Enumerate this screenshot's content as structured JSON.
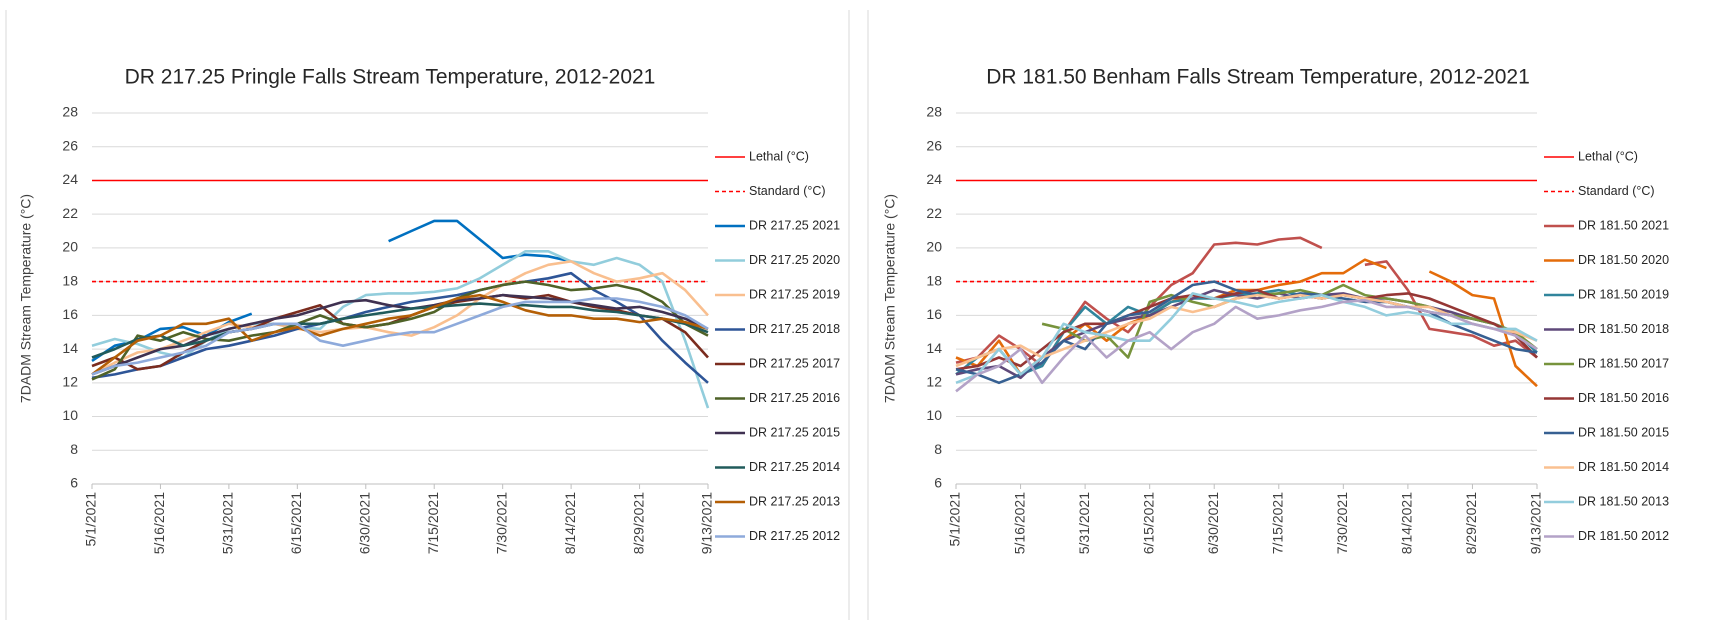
{
  "chart_data": [
    {
      "type": "line",
      "title": "DR 217.25 Pringle Falls Stream Temperature, 2012-2021",
      "y_label": "7DADM Stream Temperature (°C)",
      "categories": [
        "5/1/2021",
        null,
        null,
        "5/16/2021",
        null,
        null,
        "5/31/2021",
        null,
        null,
        "6/15/2021",
        null,
        null,
        "6/30/2021",
        null,
        null,
        "7/15/2021",
        null,
        null,
        "7/30/2021",
        null,
        null,
        "8/14/2021",
        null,
        null,
        "8/29/2021",
        null,
        null,
        "9/13/2021"
      ],
      "ylim": [
        6,
        28
      ],
      "yticks": [
        6,
        8,
        10,
        12,
        14,
        16,
        18,
        20,
        22,
        24,
        26,
        28
      ],
      "grid": true,
      "series": [
        {
          "name": "Lethal (°C)",
          "color": "#ff0000",
          "dash": false,
          "values": [
            24,
            24,
            24,
            24,
            24,
            24,
            24,
            24,
            24,
            24,
            24,
            24,
            24,
            24,
            24,
            24,
            24,
            24,
            24,
            24,
            24,
            24,
            24,
            24,
            24,
            24,
            24,
            24
          ]
        },
        {
          "name": "Standard (°C)",
          "color": "#ff0000",
          "dash": true,
          "values": [
            18,
            18,
            18,
            18,
            18,
            18,
            18,
            18,
            18,
            18,
            18,
            18,
            18,
            18,
            18,
            18,
            18,
            18,
            18,
            18,
            18,
            18,
            18,
            18,
            18,
            18,
            18,
            18
          ]
        },
        {
          "name": "DR 217.25 2021",
          "color": "#0070c0",
          "values": [
            13.3,
            14.2,
            14.5,
            15.2,
            15.3,
            14.8,
            15.6,
            16.1,
            null,
            null,
            null,
            null,
            null,
            20.4,
            21.0,
            21.6,
            21.6,
            20.5,
            19.4,
            19.6,
            19.5,
            19.2,
            null,
            null,
            null,
            null,
            null,
            null
          ]
        },
        {
          "name": "DR 217.25 2020",
          "color": "#92cddc",
          "values": [
            14.2,
            14.6,
            14.3,
            13.8,
            13.5,
            14.5,
            15.2,
            15.5,
            15.5,
            15.3,
            15.2,
            16.5,
            17.2,
            17.3,
            17.3,
            17.4,
            17.6,
            18.2,
            19.0,
            19.8,
            19.8,
            19.2,
            19.0,
            19.4,
            19.0,
            18.0,
            14.5,
            10.5
          ]
        },
        {
          "name": "DR 217.25 2019",
          "color": "#f9bf8f",
          "values": [
            12.5,
            13.2,
            13.8,
            14.0,
            14.5,
            15.0,
            15.5,
            15.3,
            15.5,
            15.2,
            15.0,
            15.2,
            15.3,
            15.0,
            14.8,
            15.3,
            16.0,
            17.0,
            17.8,
            18.5,
            19.0,
            19.2,
            18.5,
            18.0,
            18.2,
            18.5,
            17.5,
            16.0
          ]
        },
        {
          "name": "DR 217.25 2018",
          "color": "#2e5597",
          "values": [
            12.3,
            12.5,
            12.8,
            13.0,
            13.5,
            14.0,
            14.2,
            14.5,
            14.8,
            15.2,
            15.5,
            15.8,
            16.2,
            16.5,
            16.8,
            17.0,
            17.2,
            17.5,
            17.8,
            18.0,
            18.2,
            18.5,
            17.5,
            16.8,
            16.0,
            14.5,
            13.2,
            12.0
          ]
        },
        {
          "name": "DR 217.25 2017",
          "color": "#7b2c1e",
          "values": [
            13.0,
            13.5,
            12.8,
            13.0,
            13.8,
            14.5,
            15.0,
            15.2,
            15.8,
            16.2,
            16.6,
            15.5,
            15.3,
            15.5,
            16.0,
            16.5,
            16.8,
            17.0,
            17.2,
            17.0,
            17.2,
            16.8,
            16.5,
            16.3,
            16.0,
            15.8,
            15.0,
            13.5
          ]
        },
        {
          "name": "DR 217.25 2016",
          "color": "#4f6228",
          "values": [
            12.2,
            12.8,
            14.8,
            14.5,
            15.0,
            14.6,
            14.5,
            14.8,
            15.0,
            15.5,
            16.0,
            15.5,
            15.3,
            15.5,
            15.8,
            16.2,
            17.0,
            17.5,
            17.8,
            18.0,
            17.8,
            17.5,
            17.6,
            17.8,
            17.5,
            16.8,
            15.5,
            14.8
          ]
        },
        {
          "name": "DR 217.25 2015",
          "color": "#3f3151",
          "values": [
            12.5,
            13.0,
            13.5,
            14.0,
            14.2,
            14.8,
            15.2,
            15.5,
            15.8,
            16.0,
            16.4,
            16.8,
            16.9,
            16.6,
            16.4,
            16.6,
            16.9,
            17.0,
            17.2,
            17.1,
            17.0,
            16.8,
            16.6,
            16.4,
            16.5,
            16.2,
            15.8,
            15.2
          ]
        },
        {
          "name": "DR 217.25 2014",
          "color": "#215b5b",
          "values": [
            13.5,
            14.0,
            14.6,
            14.8,
            14.2,
            14.5,
            15.0,
            15.2,
            15.5,
            15.5,
            15.5,
            15.8,
            16.0,
            16.2,
            16.4,
            16.5,
            16.6,
            16.7,
            16.6,
            16.6,
            16.5,
            16.5,
            16.3,
            16.2,
            16.0,
            15.8,
            15.5,
            15.0
          ]
        },
        {
          "name": "DR 217.25 2013",
          "color": "#b45f06",
          "values": [
            12.5,
            13.5,
            14.5,
            14.8,
            15.5,
            15.5,
            15.8,
            14.5,
            15.0,
            15.3,
            14.8,
            15.2,
            15.5,
            15.8,
            16.0,
            16.5,
            17.0,
            17.2,
            16.8,
            16.3,
            16.0,
            16.0,
            15.8,
            15.8,
            15.6,
            15.8,
            15.6,
            15.2
          ]
        },
        {
          "name": "DR 217.25 2012",
          "color": "#8eaadb",
          "values": [
            12.5,
            13.0,
            13.2,
            13.5,
            13.8,
            14.2,
            15.0,
            15.2,
            15.5,
            15.5,
            14.5,
            14.2,
            14.5,
            14.8,
            15.0,
            15.0,
            15.5,
            16.0,
            16.5,
            16.8,
            16.8,
            16.8,
            17.0,
            17.0,
            16.8,
            16.5,
            16.0,
            15.2
          ]
        }
      ]
    },
    {
      "type": "line",
      "title": "DR 181.50 Benham Falls Stream Temperature, 2012-2021",
      "y_label": "7DADM Stream Temperature (°C)",
      "categories": [
        "5/1/2021",
        null,
        null,
        "5/16/2021",
        null,
        null,
        "5/31/2021",
        null,
        null,
        "6/15/2021",
        null,
        null,
        "6/30/2021",
        null,
        null,
        "7/15/2021",
        null,
        null,
        "7/30/2021",
        null,
        null,
        "8/14/2021",
        null,
        null,
        "8/29/2021",
        null,
        null,
        "9/13/2021"
      ],
      "ylim": [
        6,
        28
      ],
      "yticks": [
        6,
        8,
        10,
        12,
        14,
        16,
        18,
        20,
        22,
        24,
        26,
        28
      ],
      "grid": true,
      "series": [
        {
          "name": "Lethal (°C)",
          "color": "#ff0000",
          "dash": false,
          "values": [
            24,
            24,
            24,
            24,
            24,
            24,
            24,
            24,
            24,
            24,
            24,
            24,
            24,
            24,
            24,
            24,
            24,
            24,
            24,
            24,
            24,
            24,
            24,
            24,
            24,
            24,
            24,
            24
          ]
        },
        {
          "name": "Standard (°C)",
          "color": "#ff0000",
          "dash": true,
          "values": [
            18,
            18,
            18,
            18,
            18,
            18,
            18,
            18,
            18,
            18,
            18,
            18,
            18,
            18,
            18,
            18,
            18,
            18,
            18,
            18,
            18,
            18,
            18,
            18,
            18,
            18,
            18,
            18
          ]
        },
        {
          "name": "DR 181.50 2021",
          "color": "#c0504d",
          "values": [
            13.2,
            13.5,
            14.8,
            14.0,
            13.0,
            15.0,
            16.8,
            15.8,
            15.0,
            16.5,
            17.8,
            18.5,
            20.2,
            20.3,
            20.2,
            20.5,
            20.6,
            20.0,
            null,
            19.0,
            19.2,
            17.5,
            15.2,
            15.0,
            14.8,
            14.2,
            14.5,
            13.5
          ]
        },
        {
          "name": "DR 181.50 2020",
          "color": "#e46c0a",
          "values": [
            13.5,
            13.0,
            14.5,
            12.5,
            13.5,
            14.5,
            15.5,
            14.5,
            15.5,
            16.0,
            16.8,
            17.2,
            17.0,
            17.5,
            17.5,
            17.8,
            18.0,
            18.5,
            18.5,
            19.3,
            18.8,
            null,
            18.6,
            18.0,
            17.2,
            17.0,
            13.0,
            11.8
          ]
        },
        {
          "name": "DR 181.50 2019",
          "color": "#31859c",
          "values": [
            12.5,
            13.5,
            14.0,
            12.5,
            13.0,
            15.0,
            16.5,
            15.5,
            16.5,
            16.0,
            16.8,
            17.0,
            17.0,
            17.2,
            17.3,
            17.5,
            17.2,
            17.0,
            17.2,
            17.0,
            16.8,
            16.5,
            16.2,
            16.0,
            15.8,
            15.5,
            15.0,
            13.8
          ]
        },
        {
          "name": "DR 181.50 2018",
          "color": "#5f497a",
          "values": [
            12.5,
            12.8,
            13.0,
            12.3,
            13.5,
            14.5,
            15.0,
            15.5,
            15.8,
            16.0,
            16.5,
            17.0,
            17.5,
            17.2,
            17.0,
            17.3,
            17.0,
            17.2,
            17.3,
            17.0,
            17.0,
            16.8,
            16.5,
            16.2,
            15.8,
            15.5,
            14.8,
            13.5
          ]
        },
        {
          "name": "DR 181.50 2017",
          "color": "#77933c",
          "values": [
            null,
            null,
            null,
            null,
            15.5,
            15.2,
            14.5,
            14.8,
            13.5,
            16.8,
            17.2,
            16.8,
            16.5,
            17.0,
            17.2,
            17.3,
            17.5,
            17.2,
            17.8,
            17.2,
            17.0,
            16.8,
            16.5,
            16.0,
            15.8,
            15.5,
            15.0,
            14.0
          ]
        },
        {
          "name": "DR 181.50 2016",
          "color": "#953735",
          "values": [
            12.8,
            13.0,
            13.5,
            13.0,
            14.0,
            15.0,
            15.5,
            15.5,
            16.0,
            16.5,
            17.0,
            17.2,
            17.0,
            17.3,
            17.5,
            17.0,
            17.2,
            17.0,
            17.2,
            17.0,
            17.2,
            17.3,
            17.0,
            16.5,
            16.0,
            15.5,
            14.8,
            13.5
          ]
        },
        {
          "name": "DR 181.50 2015",
          "color": "#376092",
          "values": [
            12.8,
            12.5,
            12.0,
            12.5,
            13.2,
            14.5,
            14.0,
            15.5,
            16.0,
            16.2,
            17.0,
            17.8,
            18.0,
            17.5,
            17.2,
            17.0,
            17.3,
            17.2,
            17.0,
            16.8,
            16.8,
            16.5,
            16.2,
            15.5,
            15.0,
            14.5,
            14.0,
            13.8
          ]
        },
        {
          "name": "DR 181.50 2014",
          "color": "#fac090",
          "values": [
            13.0,
            13.5,
            14.0,
            14.2,
            13.5,
            14.0,
            14.5,
            15.0,
            15.5,
            15.8,
            16.5,
            16.2,
            16.5,
            17.0,
            17.2,
            17.0,
            17.2,
            17.0,
            17.2,
            17.0,
            16.8,
            16.5,
            16.5,
            16.0,
            15.5,
            15.2,
            15.0,
            14.5
          ]
        },
        {
          "name": "DR 181.50 2013",
          "color": "#93cddd",
          "values": [
            12.0,
            12.5,
            14.0,
            12.5,
            13.5,
            15.5,
            15.0,
            14.8,
            14.5,
            14.5,
            15.8,
            17.3,
            17.0,
            16.8,
            16.5,
            16.8,
            17.0,
            17.2,
            16.8,
            16.5,
            16.0,
            16.2,
            16.0,
            15.5,
            15.5,
            15.2,
            15.2,
            14.5
          ]
        },
        {
          "name": "DR 181.50 2012",
          "color": "#b3a2c7",
          "values": [
            11.5,
            12.5,
            13.0,
            14.0,
            12.0,
            13.5,
            14.8,
            13.5,
            14.5,
            15.0,
            14.0,
            15.0,
            15.5,
            16.5,
            15.8,
            16.0,
            16.3,
            16.5,
            16.8,
            16.9,
            16.5,
            16.5,
            16.2,
            16.0,
            15.5,
            15.2,
            14.8,
            14.0
          ]
        }
      ]
    }
  ]
}
